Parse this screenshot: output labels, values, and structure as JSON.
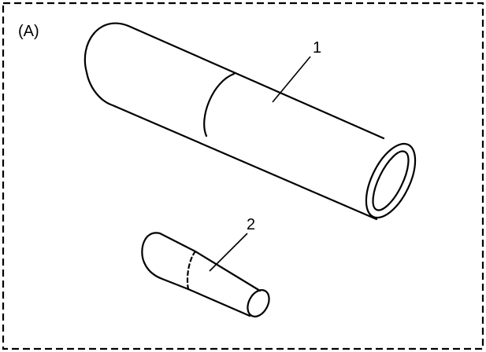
{
  "panel": {
    "label": "(A)",
    "border_style": "dashed",
    "line_color": "#000000",
    "background_color": "#ffffff"
  },
  "parts": [
    {
      "callout": "1",
      "shape": "tube"
    },
    {
      "callout": "2",
      "shape": "tapered-pin"
    }
  ]
}
